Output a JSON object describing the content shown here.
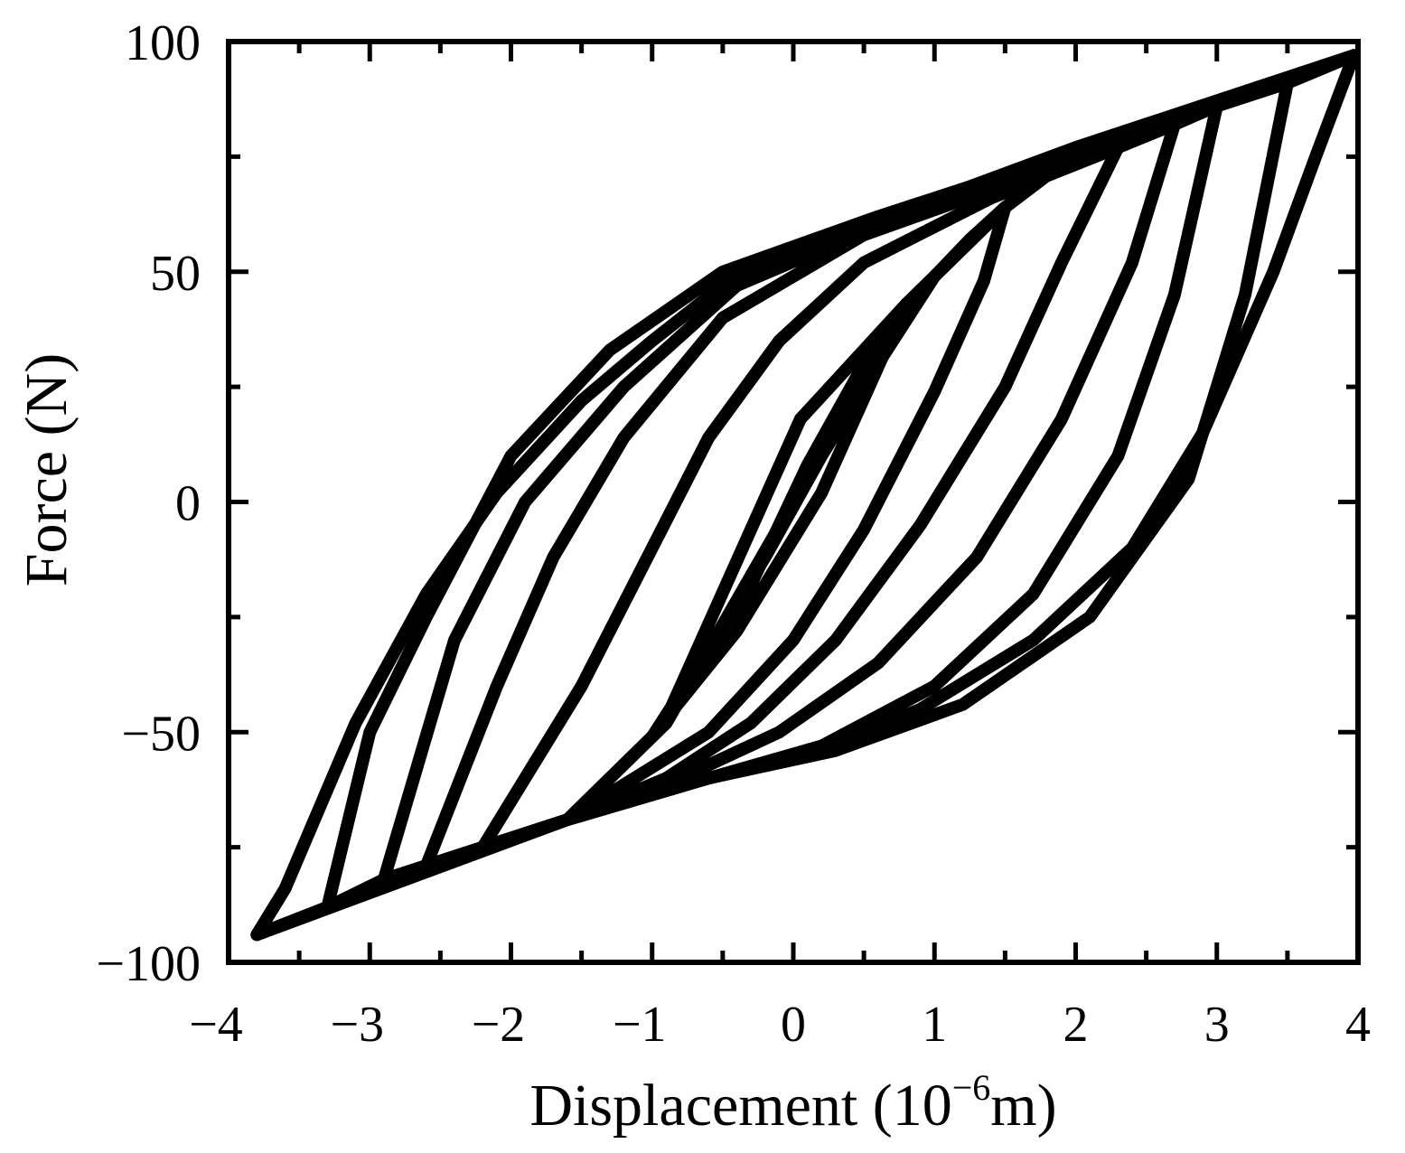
{
  "chart_data": {
    "type": "line",
    "title": "",
    "xlabel": {
      "base": "Displacement (10",
      "sup": "−6",
      "tail": "m)"
    },
    "ylabel": "Force (N)",
    "xlim": [
      -4,
      4
    ],
    "ylim": [
      -100,
      100
    ],
    "x_ticks": [
      -4,
      -3,
      -2,
      -1,
      0,
      1,
      2,
      3,
      4
    ],
    "x_tick_labels": [
      "−4",
      "−3",
      "−2",
      "−1",
      "0",
      "1",
      "2",
      "3",
      "4"
    ],
    "y_ticks": [
      -100,
      -50,
      0,
      50,
      100
    ],
    "y_tick_labels": [
      "−100",
      "−50",
      "0",
      "50",
      "100"
    ],
    "x_minor_step": 0.5,
    "y_minor_step": 25,
    "grid": false,
    "legend": "none",
    "line_color": "#000000",
    "backbone_upper": [
      [
        -0.9,
        -47
      ],
      [
        0.05,
        18
      ],
      [
        0.8,
        43
      ],
      [
        1.5,
        64
      ],
      [
        1.8,
        71
      ],
      [
        2.3,
        77
      ],
      [
        2.7,
        82
      ],
      [
        3.0,
        86
      ],
      [
        3.5,
        91
      ],
      [
        3.97,
        97
      ]
    ],
    "backbone_lower": [
      [
        0.0,
        0
      ],
      [
        -0.9,
        -48
      ],
      [
        -1.6,
        -69
      ],
      [
        -2.2,
        -75
      ],
      [
        -2.6,
        -79
      ],
      [
        -2.9,
        -82
      ],
      [
        -3.3,
        -88
      ],
      [
        -3.8,
        -94
      ]
    ],
    "series": [
      {
        "values": [
          [
            0.0,
            -1
          ],
          [
            0.4,
            23
          ],
          [
            0.8,
            43
          ],
          [
            0.5,
            30
          ],
          [
            0.1,
            8
          ],
          [
            -0.3,
            -18
          ],
          [
            -0.9,
            -47
          ],
          [
            -0.4,
            -28
          ],
          [
            0.2,
            2
          ],
          [
            0.8,
            43
          ]
        ]
      },
      {
        "values": [
          [
            1.5,
            64
          ],
          [
            1.25,
            57
          ],
          [
            1.0,
            49
          ],
          [
            0.6,
            30
          ],
          [
            0.2,
            10
          ],
          [
            -0.2,
            -12
          ],
          [
            -0.6,
            -32
          ],
          [
            -1.0,
            -51
          ],
          [
            -1.6,
            -69
          ],
          [
            -0.6,
            -50
          ],
          [
            0.0,
            -30
          ],
          [
            0.5,
            -6
          ],
          [
            1.0,
            24
          ],
          [
            1.35,
            48
          ],
          [
            1.5,
            64
          ]
        ]
      },
      {
        "values": [
          [
            2.3,
            77
          ],
          [
            1.4,
            66
          ],
          [
            0.5,
            52
          ],
          [
            -0.1,
            35
          ],
          [
            -0.6,
            14
          ],
          [
            -1.0,
            -10
          ],
          [
            -1.5,
            -40
          ],
          [
            -2.2,
            -75
          ],
          [
            -1.6,
            -69
          ],
          [
            -0.9,
            -60
          ],
          [
            -0.3,
            -48
          ],
          [
            0.3,
            -30
          ],
          [
            0.9,
            -5
          ],
          [
            1.5,
            25
          ],
          [
            1.9,
            52
          ],
          [
            2.3,
            77
          ]
        ]
      },
      {
        "values": [
          [
            2.7,
            82
          ],
          [
            1.6,
            70
          ],
          [
            0.5,
            58
          ],
          [
            -0.5,
            40
          ],
          [
            -1.2,
            14
          ],
          [
            -1.7,
            -12
          ],
          [
            -2.1,
            -40
          ],
          [
            -2.6,
            -79
          ],
          [
            -1.6,
            -69
          ],
          [
            -0.8,
            -60
          ],
          [
            -0.1,
            -50
          ],
          [
            0.6,
            -35
          ],
          [
            1.3,
            -12
          ],
          [
            1.9,
            18
          ],
          [
            2.4,
            52
          ],
          [
            2.7,
            82
          ]
        ]
      },
      {
        "values": [
          [
            3.0,
            86
          ],
          [
            1.8,
            73
          ],
          [
            0.6,
            60
          ],
          [
            -0.4,
            47
          ],
          [
            -1.2,
            25
          ],
          [
            -1.9,
            0
          ],
          [
            -2.4,
            -30
          ],
          [
            -2.9,
            -82
          ],
          [
            -1.6,
            -69
          ],
          [
            -0.6,
            -60
          ],
          [
            0.2,
            -53
          ],
          [
            1.0,
            -40
          ],
          [
            1.7,
            -20
          ],
          [
            2.3,
            10
          ],
          [
            2.7,
            45
          ],
          [
            3.0,
            86
          ]
        ]
      },
      {
        "values": [
          [
            3.5,
            91
          ],
          [
            1.9,
            75
          ],
          [
            0.6,
            62
          ],
          [
            -0.5,
            50
          ],
          [
            -1.3,
            33
          ],
          [
            -2.0,
            10
          ],
          [
            -2.6,
            -25
          ],
          [
            -3.0,
            -50
          ],
          [
            -3.3,
            -88
          ],
          [
            -1.6,
            -69
          ],
          [
            -0.6,
            -60
          ],
          [
            0.3,
            -54
          ],
          [
            1.2,
            -44
          ],
          [
            2.1,
            -25
          ],
          [
            2.8,
            5
          ],
          [
            3.2,
            45
          ],
          [
            3.5,
            91
          ]
        ]
      },
      {
        "values": [
          [
            3.97,
            97
          ],
          [
            2.0,
            77
          ],
          [
            0.5,
            60
          ],
          [
            -0.5,
            47
          ],
          [
            -1.0,
            35
          ],
          [
            -1.5,
            22
          ],
          [
            -2.1,
            2
          ],
          [
            -2.6,
            -20
          ],
          [
            -3.1,
            -48
          ],
          [
            -3.6,
            -84
          ],
          [
            -3.8,
            -94
          ],
          [
            -1.6,
            -69
          ],
          [
            -0.6,
            -60
          ],
          [
            0.1,
            -55
          ],
          [
            0.9,
            -45
          ],
          [
            1.7,
            -30
          ],
          [
            2.4,
            -10
          ],
          [
            2.9,
            15
          ],
          [
            3.4,
            50
          ],
          [
            3.7,
            75
          ],
          [
            3.97,
            97
          ]
        ]
      }
    ]
  }
}
